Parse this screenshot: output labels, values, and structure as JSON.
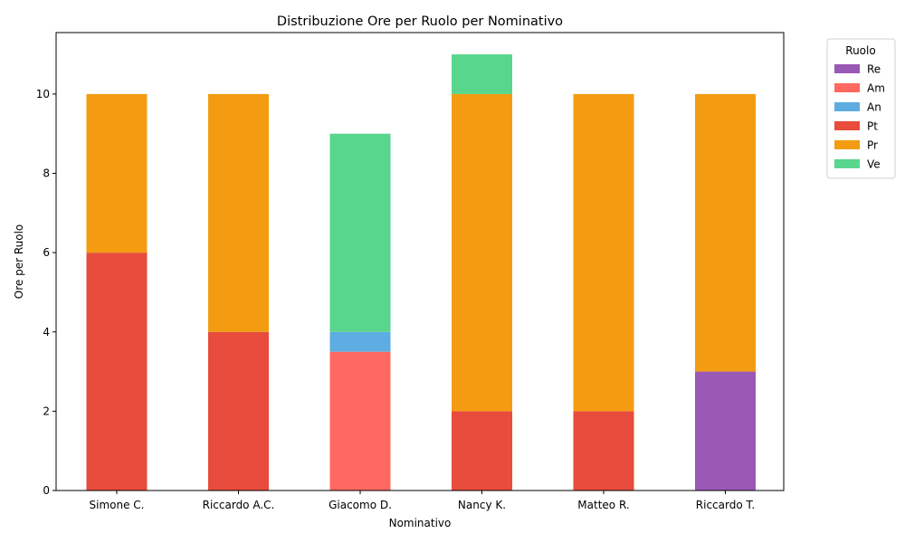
{
  "chart_data": {
    "type": "bar",
    "stacked": true,
    "title": "Distribuzione Ore per Ruolo per Nominativo",
    "xlabel": "Nominativo",
    "ylabel": "Ore per Ruolo",
    "ylim": [
      0,
      11.55
    ],
    "yticks": [
      0,
      2,
      4,
      6,
      8,
      10
    ],
    "grid": false,
    "legend_title": "Ruolo",
    "legend_position": "outside-top-right",
    "categories": [
      "Simone C.",
      "Riccardo A.C.",
      "Giacomo D.",
      "Nancy K.",
      "Matteo R.",
      "Riccardo T."
    ],
    "series": [
      {
        "name": "Re",
        "color": "#9b59b6",
        "values": [
          0,
          0,
          0,
          0,
          0,
          3
        ]
      },
      {
        "name": "Am",
        "color": "#ff6961",
        "values": [
          0,
          0,
          3.5,
          0,
          0,
          0
        ]
      },
      {
        "name": "An",
        "color": "#5dade2",
        "values": [
          0,
          0,
          0.5,
          0,
          0,
          0
        ]
      },
      {
        "name": "Pt",
        "color": "#e74c3c",
        "values": [
          6,
          4,
          0,
          2,
          2,
          0
        ]
      },
      {
        "name": "Pr",
        "color": "#f39c12",
        "values": [
          4,
          6,
          0,
          8,
          8,
          7
        ]
      },
      {
        "name": "Ve",
        "color": "#58d68d",
        "values": [
          0,
          0,
          5,
          1,
          0,
          0
        ]
      }
    ]
  }
}
